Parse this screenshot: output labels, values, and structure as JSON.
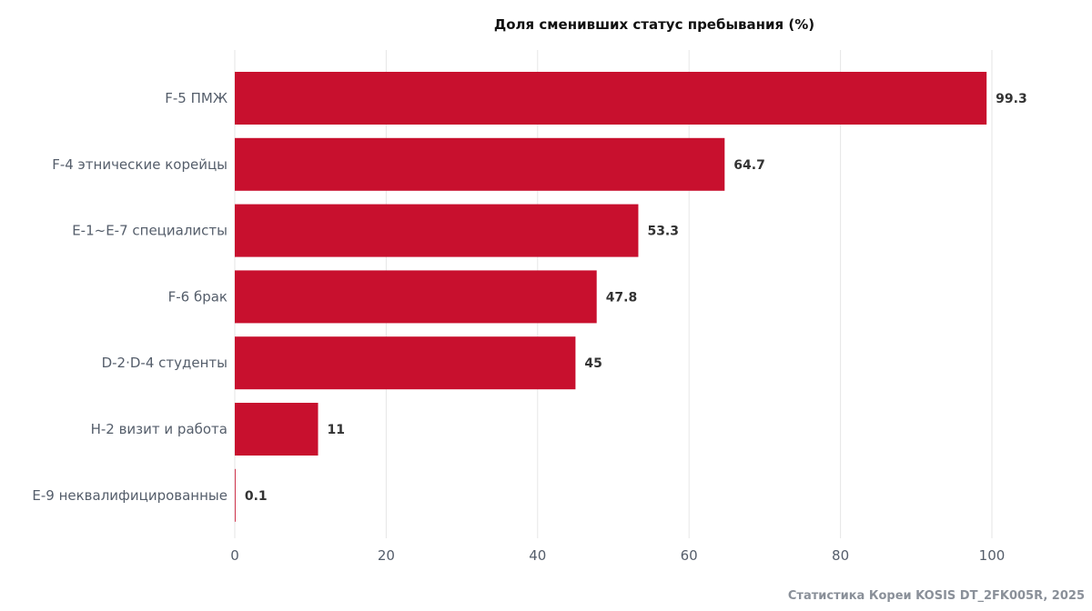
{
  "chart_data": {
    "type": "bar",
    "orientation": "horizontal",
    "title": "Доля сменивших статус пребывания (%)",
    "categories": [
      "F-5 ПМЖ",
      "F-4 этнические корейцы",
      "E-1~E-7 специалисты",
      "F-6 брак",
      "D-2·D-4 студенты",
      "H-2 визит и работа",
      "E-9 неквалифицированные"
    ],
    "values": [
      99.3,
      64.7,
      53.3,
      47.8,
      45,
      11,
      0.1
    ],
    "value_labels": [
      "99.3",
      "64.7",
      "53.3",
      "47.8",
      "45",
      "11",
      "0.1"
    ],
    "xlim": [
      0,
      100
    ],
    "xticks": [
      0,
      20,
      40,
      60,
      80,
      100
    ],
    "xlabel": "",
    "ylabel": "",
    "grid": true,
    "bar_color": "#c8102e",
    "source": "Статистика Кореи KOSIS DT_2FK005R, 2025"
  }
}
